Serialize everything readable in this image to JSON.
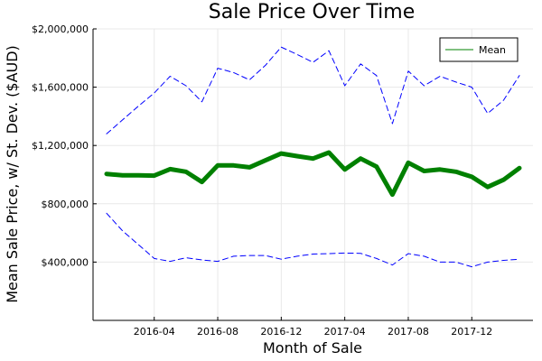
{
  "chart_data": {
    "type": "line",
    "title": "Sale Price Over Time",
    "xlabel": "Month of Sale",
    "ylabel": "Mean Sale Price, w/ St. Dev. ($AUD)",
    "x": [
      "2016-01",
      "2016-02",
      "2016-03",
      "2016-04",
      "2016-05",
      "2016-06",
      "2016-07",
      "2016-08",
      "2016-09",
      "2016-10",
      "2016-11",
      "2016-12",
      "2017-01",
      "2017-02",
      "2017-03",
      "2017-04",
      "2017-05",
      "2017-06",
      "2017-07",
      "2017-08",
      "2017-09",
      "2017-10",
      "2017-11",
      "2017-12",
      "2018-01",
      "2018-02",
      "2018-03"
    ],
    "xticks": [
      "2016-04",
      "2016-08",
      "2016-12",
      "2017-04",
      "2017-08",
      "2017-12"
    ],
    "ylim": [
      0,
      2000000
    ],
    "yticks": [
      400000,
      800000,
      1200000,
      1600000,
      2000000
    ],
    "ytick_labels": [
      "$400,000",
      "$800,000",
      "$1,200,000",
      "$1,600,000",
      "$2,000,000"
    ],
    "grid": true,
    "legend_position": "top-right",
    "series": [
      {
        "name": "Mean",
        "role": "mean",
        "color": "#008000",
        "style": "solid",
        "values": [
          1005000,
          995000,
          995000,
          993000,
          1038000,
          1020000,
          950000,
          1063000,
          1063000,
          1050000,
          1098000,
          1145000,
          1127000,
          1110000,
          1152000,
          1035000,
          1110000,
          1055000,
          863000,
          1082000,
          1025000,
          1035000,
          1020000,
          985000,
          915000,
          965000,
          1045000
        ]
      },
      {
        "name": "",
        "role": "upper",
        "color": "#0000ff",
        "style": "dashed",
        "values": [
          1280000,
          1375000,
          1470000,
          1560000,
          1675000,
          1610000,
          1500000,
          1730000,
          1700000,
          1650000,
          1750000,
          1875000,
          1825000,
          1770000,
          1850000,
          1610000,
          1760000,
          1680000,
          1350000,
          1710000,
          1610000,
          1675000,
          1635000,
          1600000,
          1420000,
          1510000,
          1680000
        ]
      },
      {
        "name": "",
        "role": "lower",
        "color": "#0000ff",
        "style": "dashed",
        "values": [
          735000,
          615000,
          520000,
          425000,
          405000,
          430000,
          415000,
          405000,
          440000,
          445000,
          445000,
          420000,
          440000,
          455000,
          458000,
          462000,
          460000,
          425000,
          380000,
          458000,
          440000,
          400000,
          400000,
          368000,
          400000,
          412000,
          420000
        ]
      }
    ]
  }
}
